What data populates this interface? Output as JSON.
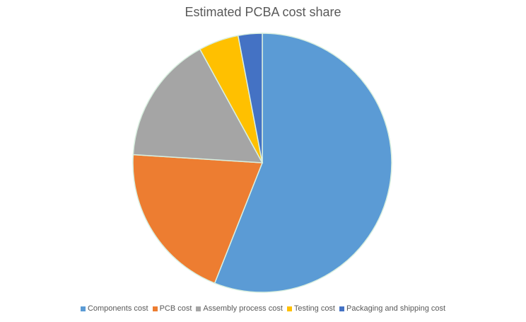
{
  "chart_data": {
    "type": "pie",
    "title": "Estimated PCBA cost share",
    "categories": [
      "Components cost",
      "PCB cost",
      "Assembly process cost",
      "Testing cost",
      "Packaging and shipping cost"
    ],
    "values": [
      56,
      20,
      16,
      5,
      3
    ],
    "colors": [
      "#5B9BD5",
      "#ED7D31",
      "#A5A5A5",
      "#FFC000",
      "#4472C4"
    ],
    "legend_position": "bottom",
    "start_angle": "12 o'clock, clockwise"
  }
}
